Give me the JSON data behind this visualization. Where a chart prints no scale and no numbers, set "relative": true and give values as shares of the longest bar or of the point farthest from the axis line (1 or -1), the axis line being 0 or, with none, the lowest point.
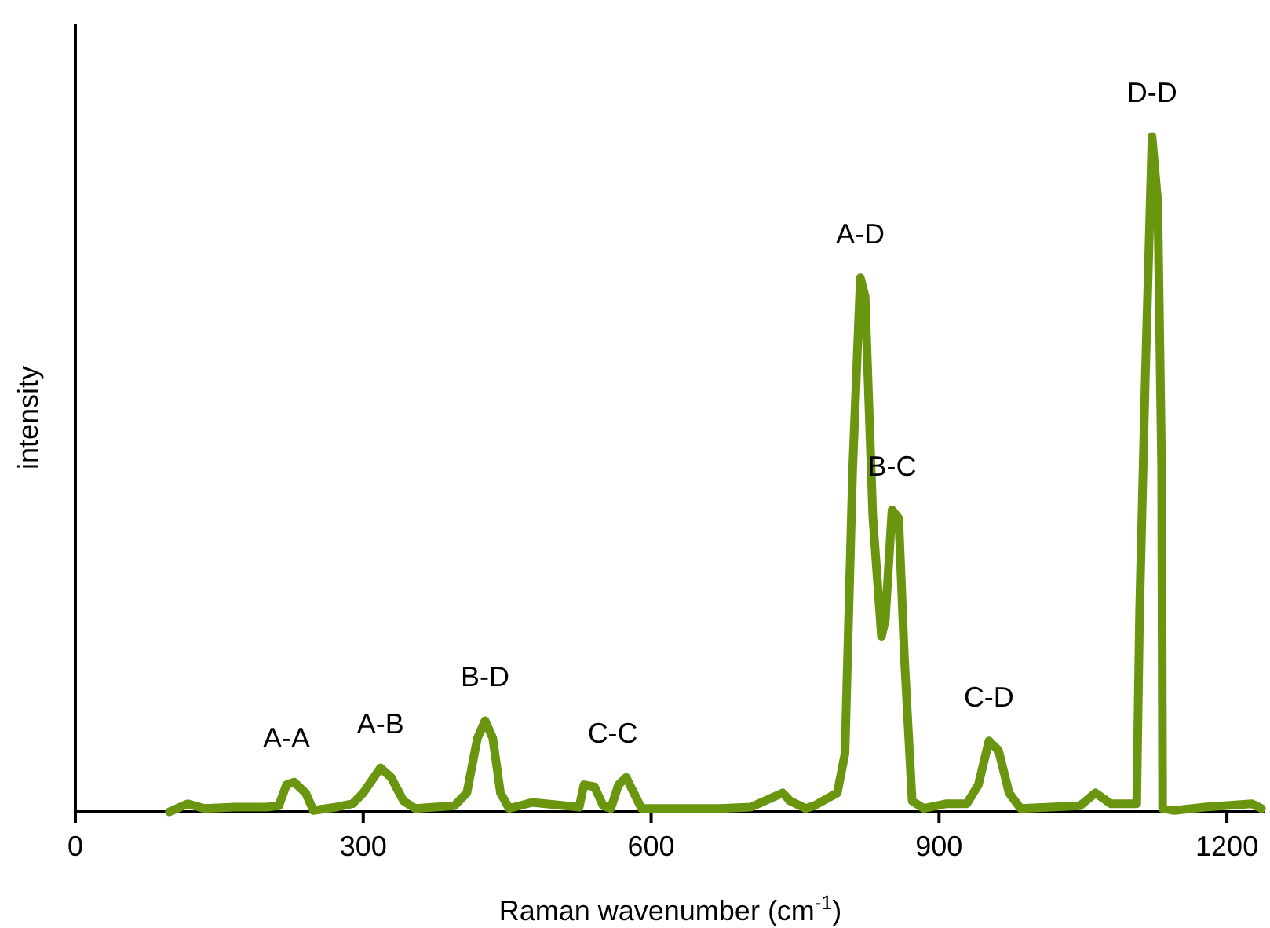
{
  "chart_data": {
    "type": "line",
    "relative": true,
    "xlabel": "Raman wavenumber (cm$^{-1}$)",
    "ylabel": "intensity",
    "xlim": [
      0,
      1240
    ],
    "xticks": [
      0,
      300,
      600,
      900,
      1200
    ],
    "grid": false,
    "marker": "none",
    "line_style": "solid",
    "series": [
      {
        "color": "#6a960f",
        "x": [
          98,
          117,
          134,
          166,
          199,
          212,
          220,
          228,
          240,
          248,
          272,
          289,
          300,
          318,
          329,
          342,
          354,
          395,
          408,
          419,
          427,
          435,
          443,
          452,
          476,
          525,
          530,
          541,
          550,
          558,
          566,
          574,
          582,
          590,
          607,
          672,
          704,
          737,
          745,
          761,
          770,
          794,
          802,
          810,
          818,
          823,
          831,
          840,
          844,
          851,
          858,
          864,
          872,
          884,
          908,
          929,
          941,
          952,
          962,
          973,
          985,
          1047,
          1063,
          1079,
          1106,
          1109,
          1115,
          1122,
          1128,
          1132,
          1133,
          1145,
          1177,
          1226,
          1236
        ],
        "values": [
          0,
          0.012,
          0.005,
          0.007,
          0.007,
          0.009,
          0.04,
          0.044,
          0.028,
          0.002,
          0.007,
          0.012,
          0.028,
          0.065,
          0.051,
          0.016,
          0.005,
          0.009,
          0.028,
          0.109,
          0.135,
          0.109,
          0.028,
          0.005,
          0.014,
          0.007,
          0.04,
          0.037,
          0.009,
          0.005,
          0.04,
          0.051,
          0.028,
          0.005,
          0.005,
          0.005,
          0.007,
          0.028,
          0.016,
          0.005,
          0.009,
          0.028,
          0.086,
          0.507,
          0.791,
          0.763,
          0.437,
          0.26,
          0.284,
          0.447,
          0.435,
          0.226,
          0.016,
          0.005,
          0.012,
          0.012,
          0.04,
          0.105,
          0.091,
          0.028,
          0.005,
          0.009,
          0.028,
          0.012,
          0.012,
          0.295,
          0.644,
          1,
          0.902,
          0.507,
          0.005,
          0.002,
          0.007,
          0.012,
          0.005
        ]
      }
    ],
    "annotations": [
      {
        "text": "A-A",
        "x": 220,
        "y": 0.044
      },
      {
        "text": "A-B",
        "x": 318,
        "y": 0.065
      },
      {
        "text": "B-D",
        "x": 427,
        "y": 0.135
      },
      {
        "text": "C-C",
        "x": 560,
        "y": 0.051
      },
      {
        "text": "A-D",
        "x": 818,
        "y": 0.791
      },
      {
        "text": "B-C",
        "x": 851,
        "y": 0.447
      },
      {
        "text": "C-D",
        "x": 952,
        "y": 0.105
      },
      {
        "text": "D-D",
        "x": 1122,
        "y": 1
      }
    ]
  }
}
